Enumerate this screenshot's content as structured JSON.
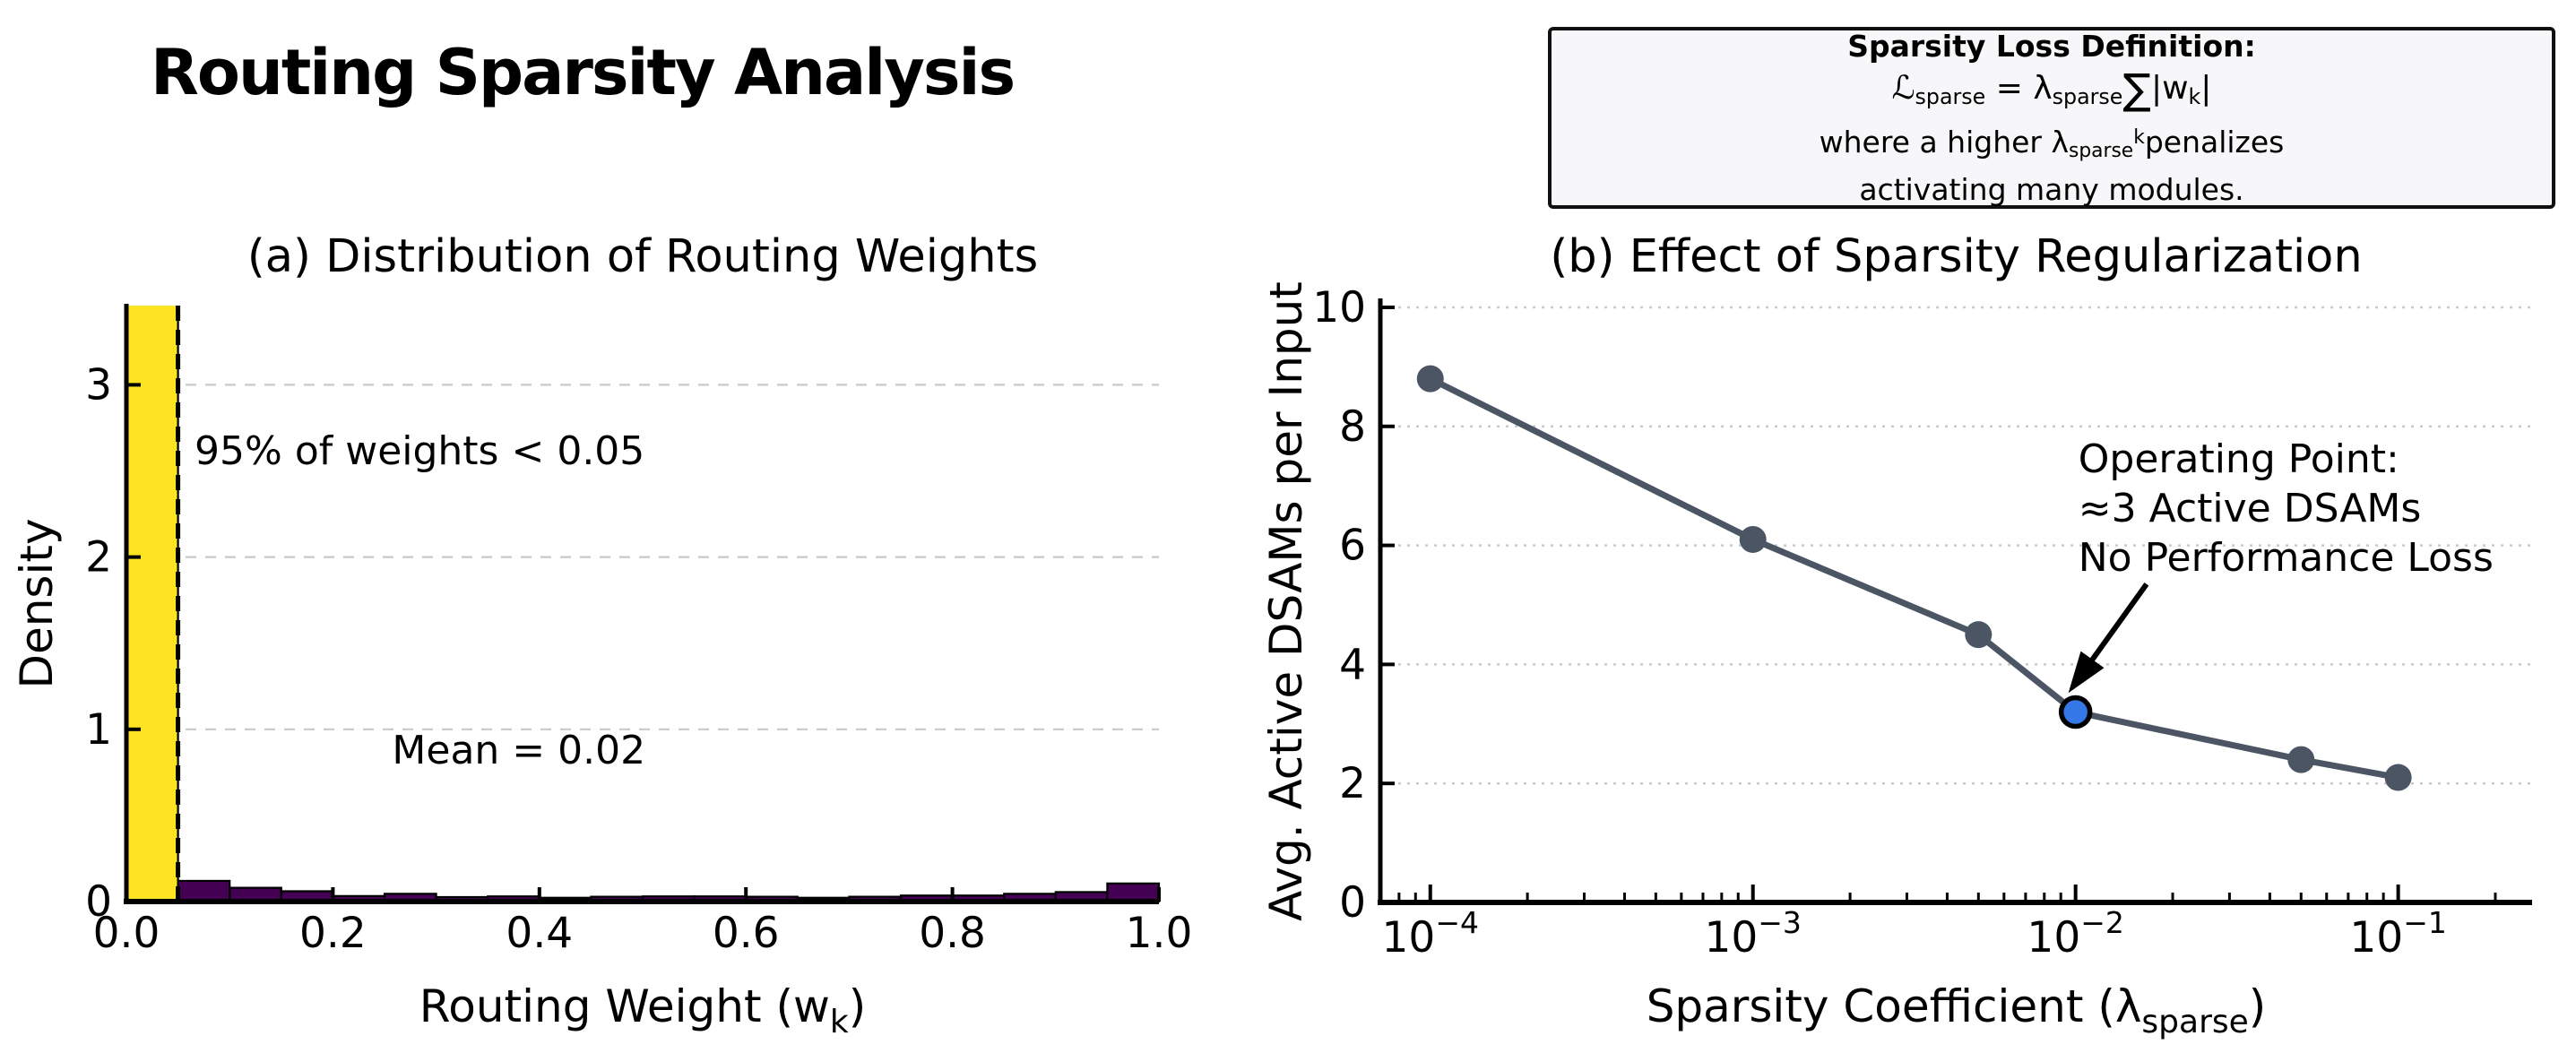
{
  "page": {
    "title": "Routing Sparsity Analysis",
    "background": "#ffffff"
  },
  "definition_box": {
    "title": "Sparsity Loss Definition:",
    "f_L": "ℒ",
    "f_L_sub": "sparse",
    "f_eq": " = λ",
    "f_lam_sub": "sparse",
    "f_sum": "∑",
    "f_w": "|w",
    "f_w_sub": "k",
    "f_close": "|",
    "l3_a": "where a higher λ",
    "l3_sub": "sparse",
    "l3_sup": "k",
    "l3_b": "penalizes",
    "l4": "activating many modules.",
    "border_color": "#101010",
    "background": "#f7f7f9"
  },
  "chart_data": [
    {
      "type": "bar",
      "panel": "a",
      "title": "(a) Distribution of Routing Weights",
      "xlabel": "Routing Weight (w_k)",
      "xlabel_rich": [
        {
          "t": "Routing Weight (w"
        },
        {
          "t": "k",
          "sub": true
        },
        {
          "t": ")"
        }
      ],
      "ylabel": "Density",
      "bin_start": 0.0,
      "bin_width": 0.05,
      "values": [
        3.46,
        0.12,
        0.08,
        0.06,
        0.032,
        0.045,
        0.026,
        0.03,
        0.022,
        0.028,
        0.03,
        0.03,
        0.028,
        0.022,
        0.028,
        0.035,
        0.035,
        0.045,
        0.055,
        0.105
      ],
      "first_bin_clipped": true,
      "bar_color_first": "#FDE321",
      "bar_color_rest": "#440154",
      "bar_edge_color": "#000000",
      "threshold_line_x": 0.05,
      "threshold_line_style": "dashed black vertical",
      "xticks": [
        "0.0",
        "0.2",
        "0.4",
        "0.6",
        "0.8",
        "1.0"
      ],
      "xtick_values": [
        0,
        0.2,
        0.4,
        0.6,
        0.8,
        1.0
      ],
      "yticks": [
        "0",
        "1",
        "2",
        "3"
      ],
      "ytick_values": [
        0,
        1,
        2,
        3
      ],
      "xlim": [
        0,
        1.0
      ],
      "ylim": [
        0,
        3.46
      ],
      "grid": "horizontal dashed",
      "grid_color": "#c9c9c9",
      "annotations": [
        {
          "text": "95% of weights < 0.05",
          "x": 0.284,
          "y": 2.54
        },
        {
          "text": "Mean = 0.02",
          "x": 0.38,
          "y": 0.8
        }
      ]
    },
    {
      "type": "line",
      "panel": "b",
      "title": "(b) Effect of Sparsity Regularization",
      "xlabel": "Sparsity Coefficient (λ_sparse)",
      "xlabel_rich": [
        {
          "t": "Sparsity Coefficient (λ"
        },
        {
          "t": "sparse",
          "sub": true
        },
        {
          "t": ")"
        }
      ],
      "ylabel": "Avg. Active DSAMs per Input",
      "xscale": "log",
      "x": [
        0.0001,
        0.001,
        0.005,
        0.01,
        0.05,
        0.1
      ],
      "y": [
        8.8,
        6.1,
        4.5,
        3.2,
        2.4,
        2.1
      ],
      "highlight_index": 3,
      "line_color": "#4B5563",
      "marker_color": "#4B5563",
      "highlight_color": "#3478E8",
      "highlight_edge_color": "#000000",
      "xlim": [
        7e-05,
        0.26
      ],
      "ylim": [
        0,
        10.12
      ],
      "xticks_base": "10",
      "xticks_exponents": [
        "−4",
        "−3",
        "−2",
        "−1"
      ],
      "xtick_values": [
        0.0001,
        0.001,
        0.01,
        0.1
      ],
      "yticks": [
        "0",
        "2",
        "4",
        "6",
        "8",
        "10"
      ],
      "ytick_values": [
        0,
        2,
        4,
        6,
        8,
        10
      ],
      "grid": "horizontal dotted",
      "grid_color": "#c9c9c9",
      "annotation": {
        "lines": [
          "Operating Point:",
          "≈3 Active DSAMs",
          "No Performance Loss"
        ],
        "x": 0.0102,
        "y": 7.23,
        "line_step": 0.83,
        "arrow_tail_x": 0.0166,
        "arrow_tail_y": 5.35,
        "arrow_tip_x": 0.0095,
        "arrow_tip_y": 3.52,
        "arrow_color": "#000000"
      }
    }
  ]
}
